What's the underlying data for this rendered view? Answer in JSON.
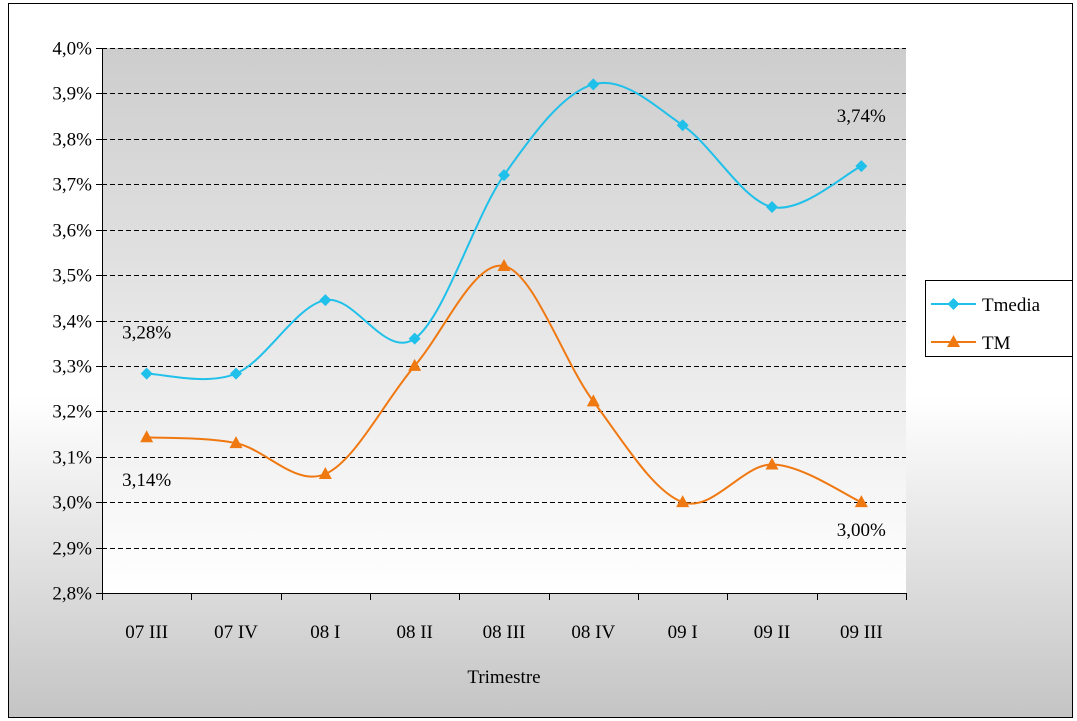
{
  "chart_data": {
    "type": "line",
    "categories": [
      "07 III",
      "07 IV",
      "08 I",
      "08 II",
      "08 III",
      "08 IV",
      "09 I",
      "09 II",
      "09 III"
    ],
    "series": [
      {
        "name": "Tmedia",
        "values": [
          3.283,
          3.283,
          3.445,
          3.36,
          3.72,
          3.92,
          3.83,
          3.65,
          3.74
        ],
        "color": "#1fc0ea",
        "marker": "diamond"
      },
      {
        "name": "TM",
        "values": [
          3.143,
          3.13,
          3.062,
          3.3,
          3.52,
          3.222,
          3.0,
          3.083,
          3.0
        ],
        "color": "#f07810",
        "marker": "triangle"
      }
    ],
    "annotations": [
      {
        "series": 0,
        "index": 0,
        "text": "3,28%"
      },
      {
        "series": 1,
        "index": 0,
        "text": "3,14%"
      },
      {
        "series": 0,
        "index": 8,
        "text": "3,74%"
      },
      {
        "series": 1,
        "index": 8,
        "text": "3,00%"
      }
    ],
    "xlabel": "Trimestre",
    "ylabel": "",
    "ylim": [
      2.8,
      4.0
    ],
    "yticks": [
      "2,8%",
      "2,9%",
      "3,0%",
      "3,1%",
      "3,2%",
      "3,3%",
      "3,4%",
      "3,5%",
      "3,6%",
      "3,7%",
      "3,8%",
      "3,9%",
      "4,0%"
    ],
    "grid": "horizontal dashed",
    "legend_position": "right",
    "colors": {
      "plot_gradient_top": "#cdcdcd",
      "plot_gradient_bottom": "#ffffff",
      "outer_background_bottom": "#c4c4c4",
      "border": "#000000"
    }
  }
}
